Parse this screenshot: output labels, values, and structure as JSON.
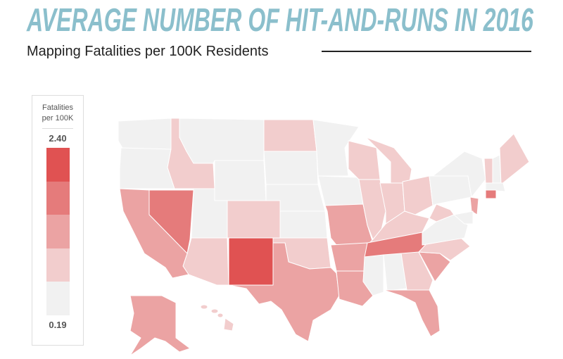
{
  "header": {
    "title": "AVERAGE NUMBER OF HIT-AND-RUNS IN 2016",
    "subtitle": "Mapping Fatalities per 100K Residents"
  },
  "legend": {
    "title": "Fatalities per 100K",
    "max": {
      "value": 2.4,
      "label": "2.40"
    },
    "min": {
      "value": 0.19,
      "label": "0.19"
    },
    "colors": [
      "#f1f1f1",
      "#f2cdcd",
      "#eba3a3",
      "#e57b7b",
      "#e05252"
    ]
  },
  "title_color": "#8bbfcc"
}
